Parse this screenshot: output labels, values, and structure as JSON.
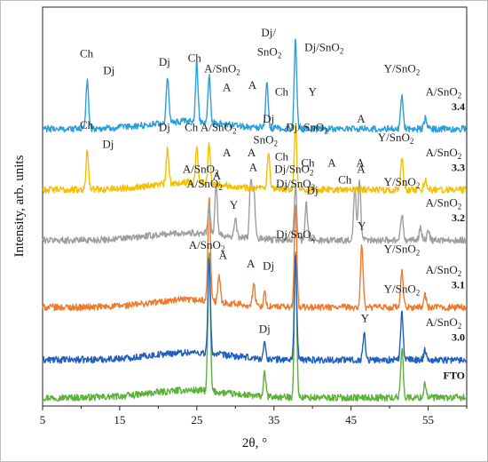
{
  "chart_data": {
    "type": "line",
    "title": "",
    "xlabel": "2θ, °",
    "ylabel": "Intensity, arb. units",
    "xlim": [
      5,
      60
    ],
    "xticks": [
      5,
      15,
      25,
      35,
      45,
      55
    ],
    "grid": false,
    "series": [
      {
        "name": "FTO",
        "color": "#5bb13a",
        "baseline": 0.4,
        "peaks": [
          [
            26.6,
            6.6
          ],
          [
            33.8,
            1.1
          ],
          [
            37.8,
            6.9
          ],
          [
            51.6,
            2.4
          ],
          [
            54.6,
            0.7
          ]
        ],
        "annotations": []
      },
      {
        "name": "3.0",
        "color": "#1f5fbf",
        "baseline": 2.2,
        "peaks": [
          [
            26.6,
            4.5
          ],
          [
            33.8,
            0.7
          ],
          [
            37.8,
            5.0
          ],
          [
            46.7,
            1.3
          ],
          [
            51.6,
            2.3
          ],
          [
            54.6,
            0.5
          ]
        ],
        "annotations": [
          {
            "text": "A/SnO",
            "sub": "2",
            "x": 26.3,
            "dy": 5.3
          },
          {
            "text": "Dj",
            "x": 33.8,
            "dy": 1.3
          },
          {
            "text": "Dj/SnO",
            "sub": "2",
            "x": 37.8,
            "dy": 5.8
          },
          {
            "text": "Y",
            "x": 46.8,
            "dy": 1.8
          },
          {
            "text": "Y/SnO",
            "sub": "2",
            "x": 51.6,
            "dy": 3.2
          },
          {
            "text": "A/SnO",
            "sub": "2",
            "x": 57.0,
            "dy": 1.6
          }
        ]
      },
      {
        "name": "3.1",
        "color": "#f07a2c",
        "baseline": 4.7,
        "peaks": [
          [
            26.6,
            5.0
          ],
          [
            27.9,
            1.2
          ],
          [
            32.4,
            1.0
          ],
          [
            33.8,
            0.6
          ],
          [
            37.8,
            5.0
          ],
          [
            46.4,
            3.0
          ],
          [
            51.6,
            1.7
          ],
          [
            54.6,
            0.6
          ]
        ],
        "annotations": [
          {
            "text": "A/SnO",
            "sub": "2",
            "x": 26.0,
            "dy": 5.7
          },
          {
            "text": "A",
            "x": 28.4,
            "dy": 2.3
          },
          {
            "text": "A",
            "x": 32.0,
            "dy": 1.9
          },
          {
            "text": "Dj",
            "x": 34.3,
            "dy": 1.8
          },
          {
            "text": "Dj/SnO",
            "sub": "2",
            "x": 37.8,
            "dy": 5.7
          },
          {
            "text": "Y",
            "x": 46.4,
            "dy": 3.7
          },
          {
            "text": "Y/SnO",
            "sub": "2",
            "x": 51.6,
            "dy": 2.6
          },
          {
            "text": "A/SnO",
            "sub": "2",
            "x": 57.0,
            "dy": 1.6
          }
        ]
      },
      {
        "name": "3.2",
        "color": "#9e9e9e",
        "baseline": 7.9,
        "peaks": [
          [
            26.6,
            1.3
          ],
          [
            27.5,
            2.4
          ],
          [
            30.0,
            0.8
          ],
          [
            32.0,
            2.8
          ],
          [
            32.4,
            2.2
          ],
          [
            37.8,
            2.6
          ],
          [
            39.2,
            1.7
          ],
          [
            45.5,
            2.4
          ],
          [
            46.1,
            2.9
          ],
          [
            51.6,
            1.3
          ],
          [
            54.0,
            0.6
          ],
          [
            55.0,
            0.5
          ]
        ],
        "annotations": [
          {
            "text": "A/SnO",
            "sub": "2",
            "x": 25.5,
            "dy": 3.2
          },
          {
            "text": "A",
            "x": 27.6,
            "dy": 2.9
          },
          {
            "text": "Y",
            "x": 29.8,
            "dy": 1.5
          },
          {
            "text": "A",
            "x": 32.3,
            "dy": 3.3
          },
          {
            "text": "Dj/SnO",
            "sub": "2",
            "x": 37.6,
            "dy": 3.2
          },
          {
            "text": "Dj",
            "x": 40.0,
            "dy": 2.2
          },
          {
            "text": "Ch",
            "x": 44.2,
            "dy": 2.7
          },
          {
            "text": "A",
            "x": 46.3,
            "dy": 3.2
          },
          {
            "text": "Y/SnO",
            "sub": "2",
            "x": 51.6,
            "dy": 2.6
          },
          {
            "text": "A/SnO",
            "sub": "2",
            "x": 57.0,
            "dy": 1.6
          }
        ]
      },
      {
        "name": "3.3",
        "color": "#f5c000",
        "baseline": 10.3,
        "peaks": [
          [
            10.8,
            2.0
          ],
          [
            21.2,
            1.6
          ],
          [
            25.0,
            1.7
          ],
          [
            26.6,
            1.9
          ],
          [
            34.3,
            1.7
          ],
          [
            37.8,
            3.0
          ],
          [
            51.6,
            1.5
          ],
          [
            54.6,
            0.5
          ]
        ],
        "annotations": [
          {
            "text": "Ch",
            "x": 10.7,
            "dy": 2.9
          },
          {
            "text": "Dj",
            "x": 13.5,
            "dy": 2.0
          },
          {
            "text": "Dj",
            "x": 20.8,
            "dy": 2.8
          },
          {
            "text": "Ch",
            "x": 24.3,
            "dy": 2.8
          },
          {
            "text": "A/SnO",
            "sub": "2",
            "x": 27.8,
            "dy": 2.8
          },
          {
            "text": "A",
            "x": 28.9,
            "dy": 1.6
          },
          {
            "text": "A",
            "x": 32.1,
            "dy": 1.6
          },
          {
            "text": "SnO",
            "sub": "2",
            "x": 33.9,
            "dy": 2.2
          },
          {
            "text": "Dj",
            "x": 34.3,
            "dy": 3.2
          },
          {
            "text": "Ch",
            "x": 36.0,
            "dy": 1.4
          },
          {
            "text": "Dj/ SnO",
            "sub": "2",
            "x": 39.3,
            "dy": 2.8
          },
          {
            "text": "Ch",
            "x": 39.4,
            "dy": 1.1
          },
          {
            "text": "A",
            "x": 42.5,
            "dy": 1.1
          },
          {
            "text": "A",
            "x": 46.2,
            "dy": 1.1
          },
          {
            "text": "Y/SnO",
            "sub": "2",
            "x": 50.8,
            "dy": 2.3
          },
          {
            "text": "A/SnO",
            "sub": "2",
            "x": 57.0,
            "dy": 1.6
          }
        ]
      },
      {
        "name": "3.4",
        "color": "#2b9fdc",
        "baseline": 13.2,
        "peaks": [
          [
            10.8,
            2.4
          ],
          [
            21.2,
            2.2
          ],
          [
            25.0,
            2.8
          ],
          [
            26.6,
            2.3
          ],
          [
            34.1,
            2.2
          ],
          [
            37.8,
            4.3
          ],
          [
            51.6,
            1.6
          ],
          [
            54.6,
            0.5
          ]
        ],
        "annotations": [
          {
            "text": "Ch",
            "x": 10.7,
            "dy": 3.4
          },
          {
            "text": "Dj",
            "x": 13.6,
            "dy": 2.6
          },
          {
            "text": "Dj",
            "x": 20.8,
            "dy": 3.0
          },
          {
            "text": "Ch",
            "x": 24.7,
            "dy": 3.2
          },
          {
            "text": "A/SnO",
            "sub": "2",
            "x": 28.3,
            "dy": 2.7
          },
          {
            "text": "A",
            "x": 28.9,
            "dy": 1.8
          },
          {
            "text": "A",
            "x": 32.2,
            "dy": 1.9
          },
          {
            "text": "Dj/",
            "x": 34.3,
            "dy": 4.4
          },
          {
            "text": "SnO",
            "sub": "2",
            "x": 34.4,
            "dy": 3.5
          },
          {
            "text": "Ch",
            "x": 36.0,
            "dy": 1.6
          },
          {
            "text": "Dj/SnO",
            "sub": "2",
            "x": 41.5,
            "dy": 3.7
          },
          {
            "text": "Y",
            "x": 40.0,
            "dy": 1.6
          },
          {
            "text": "A",
            "x": 46.3,
            "dy": 0.3
          },
          {
            "text": "Y/SnO",
            "sub": "2",
            "x": 51.6,
            "dy": 2.7
          },
          {
            "text": "A/SnO",
            "sub": "2",
            "x": 57.0,
            "dy": 1.6
          }
        ]
      }
    ]
  }
}
